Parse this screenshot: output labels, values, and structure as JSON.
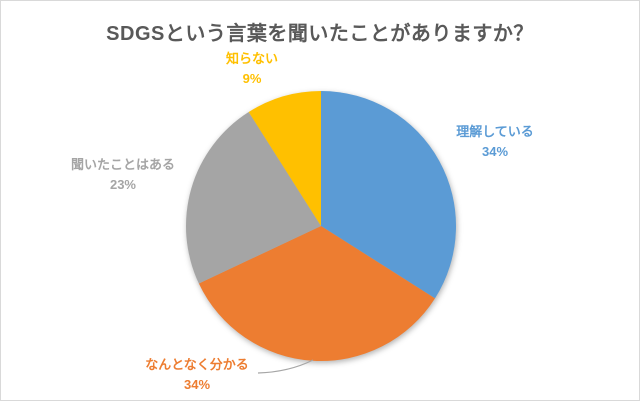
{
  "window": {
    "background": "#FFFFFF",
    "border_color": "#D9D9D9"
  },
  "chart_data": {
    "type": "pie",
    "title": "SDGSという言葉を聞いたことがありますか？",
    "title_color": "#595959",
    "categories": [
      "理解している",
      "なんとなく分かる",
      "聞いたことはある",
      "知らない"
    ],
    "values": [
      34,
      34,
      23,
      9
    ],
    "value_labels": [
      "34%",
      "34%",
      "23%",
      "9%"
    ],
    "unit": "%",
    "colors": [
      "#5B9BD5",
      "#ED7D31",
      "#A5A5A5",
      "#FFC000"
    ],
    "start_angle_deg": 0,
    "direction": "clockwise",
    "legend": "none",
    "label_position": "outside-end",
    "leader_line_color": "#A6A6A6"
  }
}
